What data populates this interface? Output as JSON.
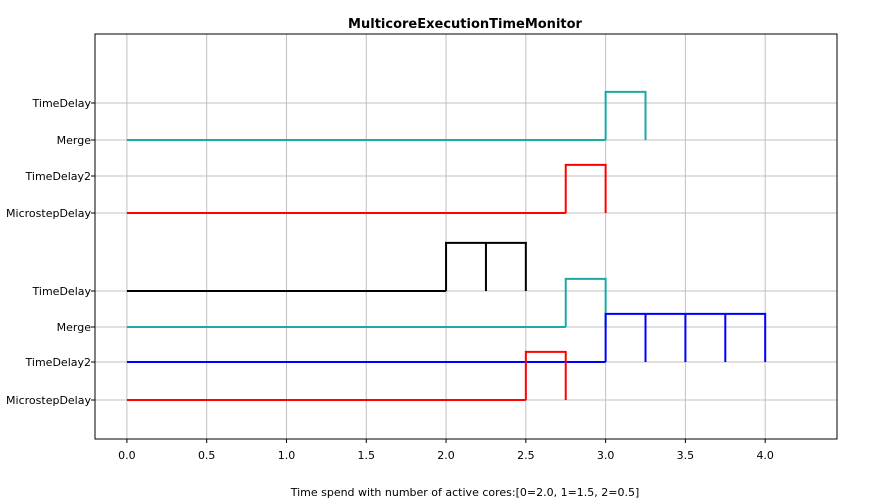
{
  "chart_data": {
    "type": "line",
    "title": "MulticoreExecutionTimeMonitor",
    "xlabel": "Time spend with number of active cores:[0=2.0, 1=1.5, 2=0.5]",
    "ylabel": "",
    "xlim": [
      -0.2,
      4.45
    ],
    "x_ticks": [
      "0.0",
      "0.5",
      "1.0",
      "1.5",
      "2.0",
      "2.5",
      "3.0",
      "3.5",
      "4.0"
    ],
    "y_tick_labels": [
      "TimeDelay",
      "Merge",
      "TimeDelay2",
      "MicrostepDelay",
      "TimeDelay",
      "Merge",
      "TimeDelay2",
      "MicrostepDelay"
    ],
    "grid": true,
    "step_height": 0.66,
    "series": [
      {
        "color": "#1aa9a6",
        "row": 1,
        "baseline_end": 3.0,
        "pulses": [
          [
            3.0,
            3.25
          ]
        ]
      },
      {
        "color": "#ff0000",
        "row": 3,
        "baseline_end": 2.75,
        "pulses": [
          [
            2.75,
            3.0
          ]
        ]
      },
      {
        "color": "#000000",
        "row": 4,
        "baseline_end": 2.0,
        "pulses": [
          [
            2.0,
            2.25
          ],
          [
            2.25,
            2.5
          ]
        ]
      },
      {
        "color": "#1aa9a6",
        "row": 5,
        "baseline_end": 2.75,
        "pulses": [
          [
            2.75,
            3.0
          ]
        ]
      },
      {
        "color": "#0000ff",
        "row": 6,
        "baseline_end": 3.0,
        "pulses": [
          [
            3.0,
            3.25
          ],
          [
            3.25,
            3.5
          ],
          [
            3.5,
            3.75
          ],
          [
            3.75,
            4.0
          ]
        ]
      },
      {
        "color": "#ff0000",
        "row": 7,
        "baseline_end": 2.5,
        "pulses": [
          [
            2.5,
            2.75
          ]
        ]
      }
    ]
  }
}
